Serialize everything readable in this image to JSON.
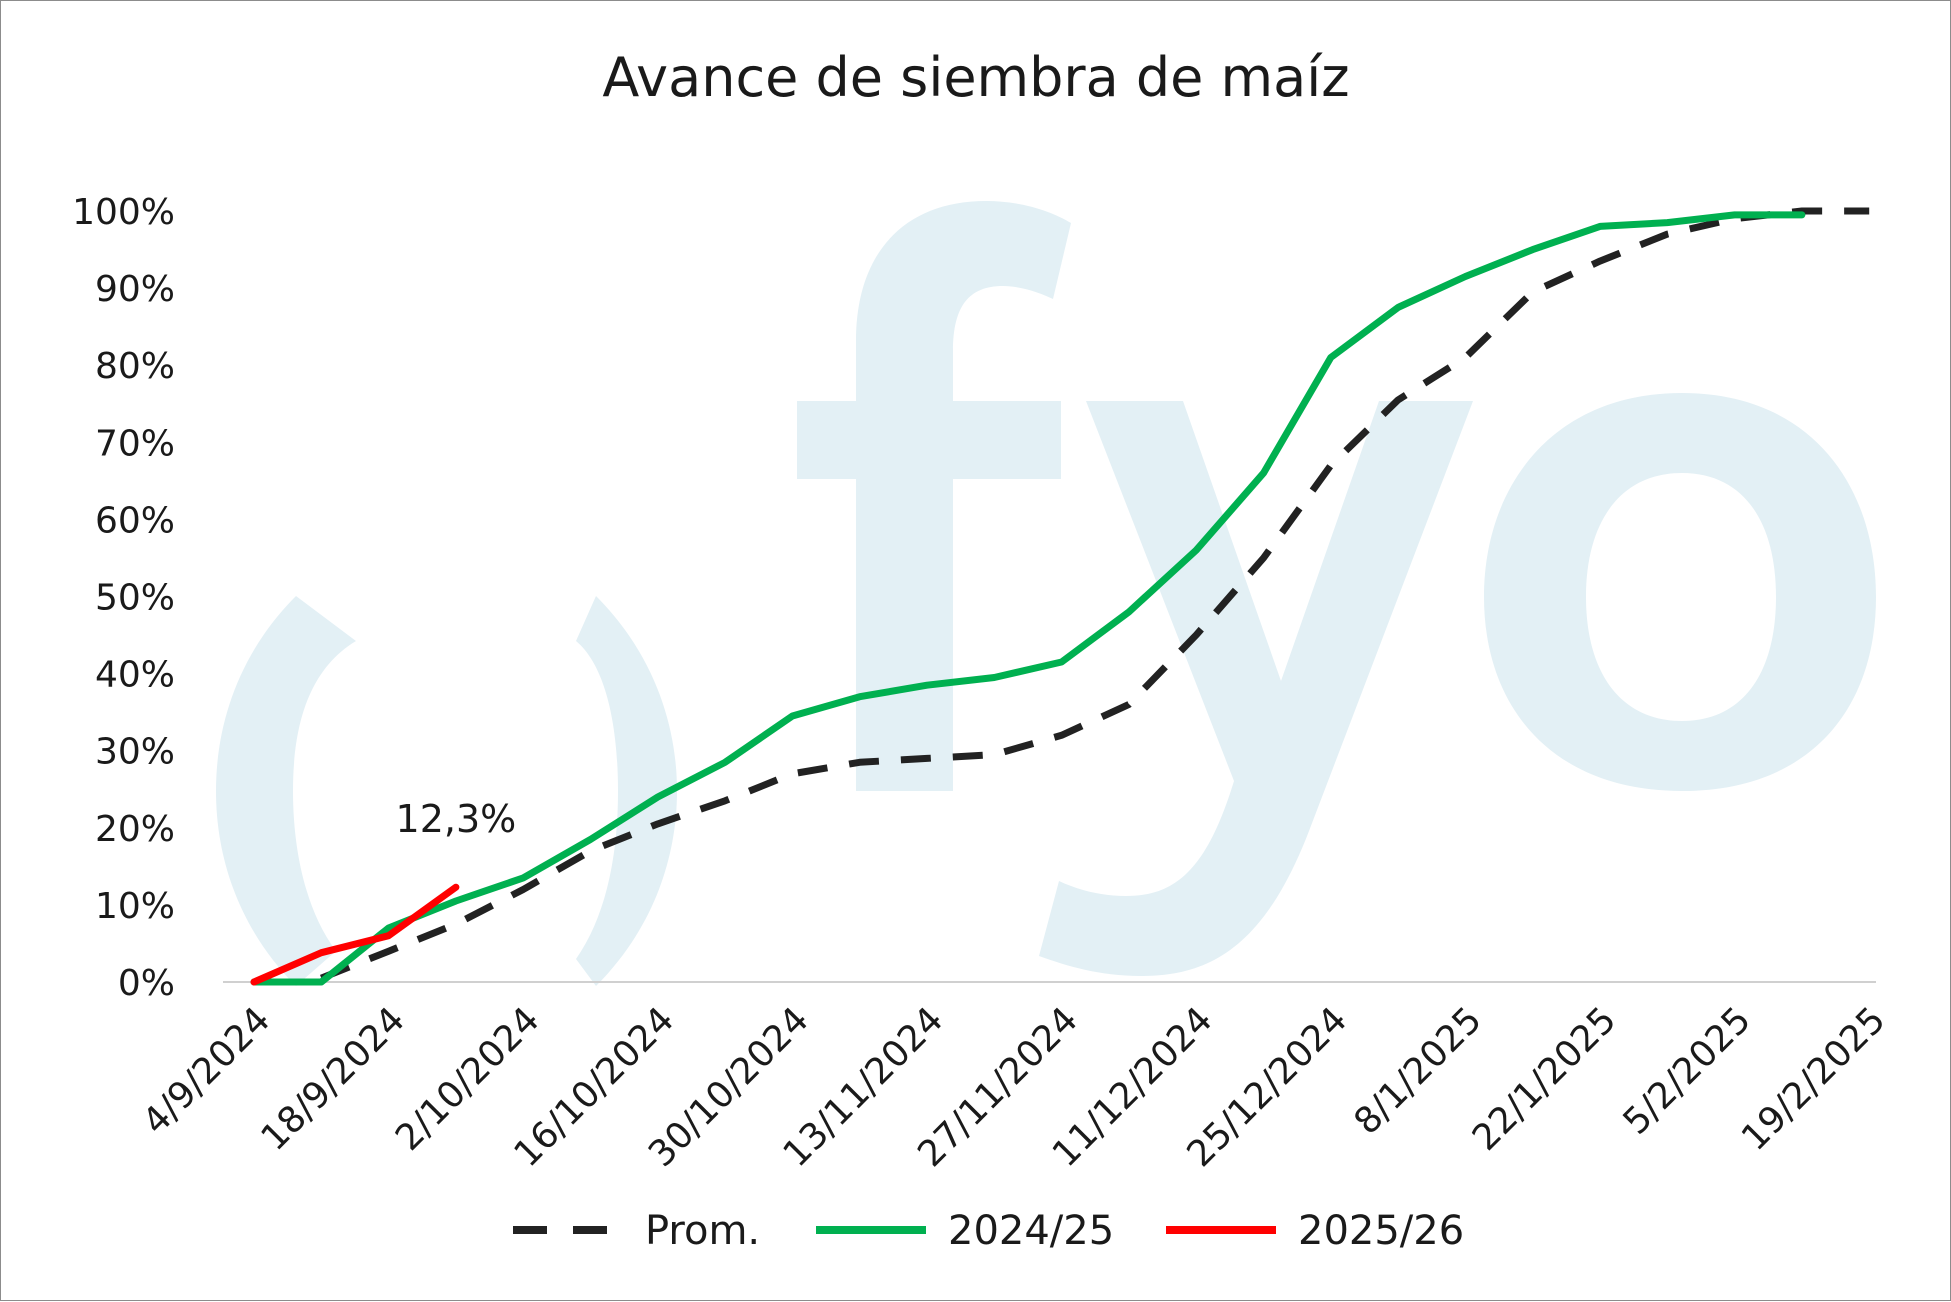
{
  "chart_data": {
    "type": "line",
    "title": "Avance de siembra de maíz",
    "xlabel": "",
    "ylabel": "",
    "ylim": [
      0,
      100
    ],
    "y_ticks": [
      "0%",
      "10%",
      "20%",
      "30%",
      "40%",
      "50%",
      "60%",
      "70%",
      "80%",
      "90%",
      "100%"
    ],
    "x_ticks": [
      "4/9/2024",
      "18/9/2024",
      "2/10/2024",
      "16/10/2024",
      "30/10/2024",
      "13/11/2024",
      "27/11/2024",
      "11/12/2024",
      "25/12/2024",
      "8/1/2025",
      "22/1/2025",
      "5/2/2025",
      "19/2/2025"
    ],
    "x": [
      "4/9/2024",
      "11/9/2024",
      "18/9/2024",
      "25/9/2024",
      "2/10/2024",
      "9/10/2024",
      "16/10/2024",
      "23/10/2024",
      "30/10/2024",
      "6/11/2024",
      "13/11/2024",
      "20/11/2024",
      "27/11/2024",
      "4/12/2024",
      "11/12/2024",
      "18/12/2024",
      "25/12/2024",
      "1/1/2025",
      "8/1/2025",
      "15/1/2025",
      "22/1/2025",
      "29/1/2025",
      "5/2/2025",
      "12/2/2025",
      "19/2/2025"
    ],
    "series": [
      {
        "name": "Prom.",
        "color": "#222222",
        "style": "dashed",
        "values": [
          null,
          0.5,
          4,
          7.5,
          12,
          17,
          20.5,
          23.5,
          27,
          28.5,
          29,
          29.5,
          32,
          36,
          45,
          55,
          67,
          75.5,
          81,
          89.5,
          93.5,
          97,
          99,
          100,
          100
        ]
      },
      {
        "name": "2024/25",
        "color": "#00b050",
        "style": "solid",
        "values": [
          0,
          0,
          7,
          10.5,
          13.5,
          18.5,
          24,
          28.5,
          34.5,
          37,
          38.5,
          39.5,
          41.5,
          48,
          56,
          66,
          81,
          87.5,
          91.5,
          95,
          98,
          98.5,
          99.5,
          99.5,
          null
        ]
      },
      {
        "name": "2025/26",
        "color": "#ff0000",
        "style": "solid",
        "values": [
          0,
          3.8,
          6,
          12.3,
          null,
          null,
          null,
          null,
          null,
          null,
          null,
          null,
          null,
          null,
          null,
          null,
          null,
          null,
          null,
          null,
          null,
          null,
          null,
          null,
          null
        ]
      }
    ],
    "annotations": [
      {
        "text": "12,3%",
        "x": "25/9/2024",
        "y": 12.3
      }
    ],
    "legend": {
      "placement": "bottom",
      "entries": [
        "Prom.",
        "2024/25",
        "2025/26"
      ]
    },
    "grid": false,
    "watermark": "fyo"
  }
}
